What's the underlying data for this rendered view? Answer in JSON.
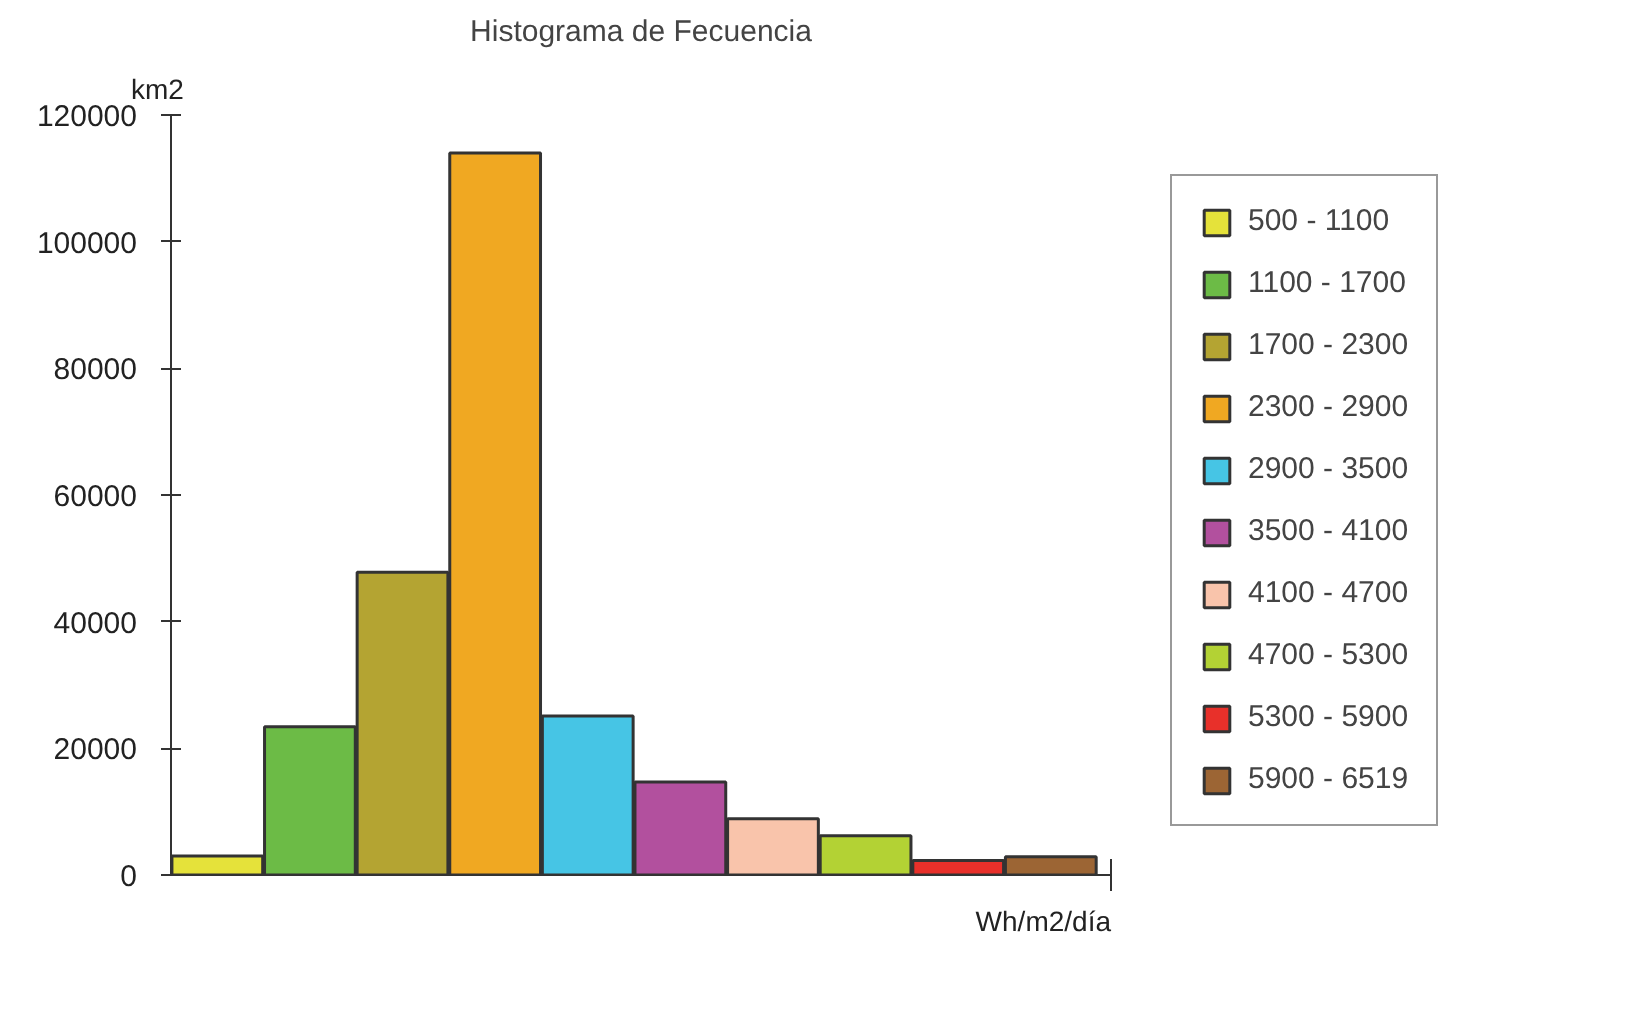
{
  "chart_data": {
    "type": "bar",
    "title": "Histograma de Fecuencia",
    "xlabel": "Wh/m2/día",
    "ylabel": "km2",
    "categories": [
      null,
      null,
      null,
      null,
      null,
      null,
      null,
      null,
      null,
      null
    ],
    "series": [
      {
        "name": "500 - 1100",
        "color": "#e5e23a",
        "values": [
          3000,
          null,
          null,
          null,
          null,
          null,
          null,
          null,
          null,
          null
        ]
      },
      {
        "name": "1100 - 1700",
        "color": "#6cbb46",
        "values": [
          null,
          23400,
          null,
          null,
          null,
          null,
          null,
          null,
          null,
          null
        ]
      },
      {
        "name": "1700 - 2300",
        "color": "#b4a432",
        "values": [
          null,
          null,
          47800,
          null,
          null,
          null,
          null,
          null,
          null,
          null
        ]
      },
      {
        "name": "2300 - 2900",
        "color": "#f0a822",
        "values": [
          null,
          null,
          null,
          114000,
          null,
          null,
          null,
          null,
          null,
          null
        ]
      },
      {
        "name": "2900 - 3500",
        "color": "#46c5e5",
        "values": [
          null,
          null,
          null,
          null,
          25100,
          null,
          null,
          null,
          null,
          null
        ]
      },
      {
        "name": "3500 - 4100",
        "color": "#b2509e",
        "values": [
          null,
          null,
          null,
          null,
          null,
          14700,
          null,
          null,
          null,
          null
        ]
      },
      {
        "name": "4100 - 4700",
        "color": "#f9c4ab",
        "values": [
          null,
          null,
          null,
          null,
          null,
          null,
          8900,
          null,
          null,
          null
        ]
      },
      {
        "name": "4700 - 5300",
        "color": "#b3d234",
        "values": [
          null,
          null,
          null,
          null,
          null,
          null,
          null,
          6200,
          null,
          null
        ]
      },
      {
        "name": "5300 - 5900",
        "color": "#e8302a",
        "values": [
          null,
          null,
          null,
          null,
          null,
          null,
          null,
          null,
          2300,
          null
        ]
      },
      {
        "name": "5900 - 6519",
        "color": "#9c6534",
        "values": [
          null,
          null,
          null,
          null,
          null,
          null,
          null,
          null,
          null,
          2900
        ]
      }
    ],
    "ylim": [
      0,
      120000
    ],
    "yticks": [
      0,
      20000,
      40000,
      60000,
      80000,
      100000,
      120000
    ],
    "tick_labels": "y",
    "grid": false,
    "legend": "right"
  }
}
